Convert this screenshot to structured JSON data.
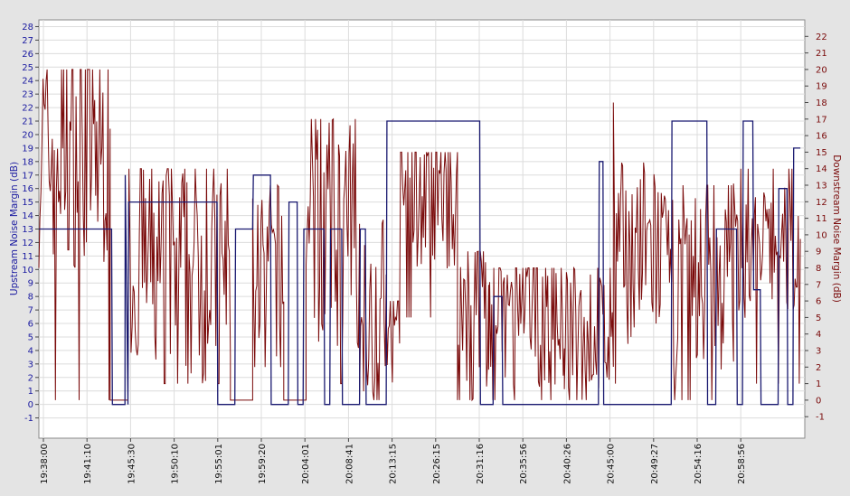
{
  "chart_data": {
    "type": "line",
    "title": "",
    "xlabel": "",
    "colors": {
      "upstream": "#191970",
      "downstream": "#7a0a0a",
      "left_axis_text": "#1a1aa0",
      "right_axis_text": "#7a0a0a",
      "grid": "#dcdcdc",
      "plot_bg": "#ffffff"
    },
    "left_axis": {
      "label": "Upstream Noise Margin (dB)",
      "ylim": [
        -2.5,
        28.5
      ],
      "ticks": [
        "-1",
        "0",
        "1",
        "2",
        "3",
        "4",
        "5",
        "6",
        "7",
        "8",
        "9",
        "10",
        "11",
        "12",
        "13",
        "14",
        "15",
        "16",
        "17",
        "18",
        "19",
        "20",
        "21",
        "22",
        "23",
        "24",
        "25",
        "26",
        "27",
        "28"
      ]
    },
    "right_axis": {
      "label": "Downstream Noise Margin (dB)",
      "ylim": [
        -2.3,
        23.0
      ],
      "ticks": [
        "-1",
        "0",
        "1",
        "2",
        "3",
        "4",
        "5",
        "6",
        "7",
        "8",
        "9",
        "10",
        "11",
        "12",
        "13",
        "14",
        "15",
        "16",
        "17",
        "18",
        "19",
        "20",
        "21",
        "22"
      ]
    },
    "x_axis": {
      "start": "19:37:00",
      "end": "21:03:00",
      "tick_labels": [
        "19:38:00",
        "19:41:10",
        "19:45:30",
        "19:50:10",
        "19:55:01",
        "19:59:20",
        "20:04:01",
        "20:08:41",
        "20:13:15",
        "20:26:15",
        "20:31:16",
        "20:35:56",
        "20:40:26",
        "20:45:00",
        "20:49:27",
        "20:54:16",
        "20:58:56"
      ]
    },
    "series": [
      {
        "name": "Upstream Noise Margin (dB)",
        "axis": "left",
        "step": true,
        "x": [
          "19:37:00",
          "19:45:10",
          "19:45:15",
          "19:46:40",
          "19:46:42",
          "19:47:00",
          "19:47:05",
          "19:57:00",
          "19:57:05",
          "19:59:00",
          "19:59:05",
          "20:01:00",
          "20:01:05",
          "20:03:00",
          "20:03:05",
          "20:05:00",
          "20:05:05",
          "20:06:00",
          "20:06:05",
          "20:06:40",
          "20:06:45",
          "20:09:00",
          "20:09:05",
          "20:09:40",
          "20:09:45",
          "20:11:00",
          "20:11:05",
          "20:13:00",
          "20:13:05",
          "20:13:40",
          "20:13:45",
          "20:16:00",
          "20:16:05",
          "20:26:30",
          "20:26:35",
          "20:28:00",
          "20:28:05",
          "20:29:00",
          "20:29:05",
          "20:39:50",
          "20:39:55",
          "20:40:20",
          "20:40:25",
          "20:48:00",
          "20:48:05",
          "20:52:00",
          "20:52:05",
          "20:53:00",
          "20:53:05",
          "20:55:20",
          "20:55:25",
          "20:56:00",
          "20:56:05",
          "20:57:10",
          "20:57:15",
          "20:58:00",
          "20:58:05",
          "21:00:00",
          "21:00:05",
          "21:01:00",
          "21:01:05",
          "21:01:40",
          "21:01:45",
          "21:02:30"
        ],
        "y": [
          13,
          13,
          0,
          0,
          17,
          0,
          15,
          15,
          0,
          0,
          13,
          13,
          17,
          17,
          0,
          0,
          15,
          15,
          0,
          0,
          13,
          13,
          0,
          0,
          13,
          13,
          0,
          0,
          13,
          13,
          0,
          0,
          21,
          21,
          0,
          0,
          8,
          8,
          0,
          0,
          18,
          18,
          0,
          0,
          21,
          21,
          0,
          0,
          13,
          13,
          0,
          0,
          21,
          21,
          8.5,
          8.5,
          0,
          0,
          16,
          16,
          0,
          0,
          19,
          19
        ]
      },
      {
        "name": "Downstream Noise Margin (dB)",
        "axis": "right",
        "x_range": [
          "19:37:00",
          "21:02:30"
        ],
        "segments": [
          {
            "start": "19:37:00",
            "end": "19:45:00",
            "base": 15,
            "amp": 5,
            "min": 0,
            "max": 20
          },
          {
            "start": "19:45:00",
            "end": "19:47:00",
            "base": 0,
            "amp": 0,
            "min": 0,
            "max": 0
          },
          {
            "start": "19:47:00",
            "end": "19:58:30",
            "base": 8,
            "amp": 5,
            "min": 1,
            "max": 14
          },
          {
            "start": "19:58:30",
            "end": "20:01:00",
            "base": 0,
            "amp": 0,
            "min": 0,
            "max": 0
          },
          {
            "start": "20:01:00",
            "end": "20:04:30",
            "base": 8,
            "amp": 4,
            "min": 2,
            "max": 13
          },
          {
            "start": "20:04:30",
            "end": "20:07:00",
            "base": 0,
            "amp": 0,
            "min": 0,
            "max": 0
          },
          {
            "start": "20:07:00",
            "end": "20:13:00",
            "base": 10,
            "amp": 5,
            "min": 1,
            "max": 17
          },
          {
            "start": "20:13:00",
            "end": "20:16:00",
            "base": 6,
            "amp": 4,
            "min": 0,
            "max": 11
          },
          {
            "start": "20:16:00",
            "end": "20:17:30",
            "base": 3,
            "amp": 2,
            "min": 0,
            "max": 6
          },
          {
            "start": "20:17:30",
            "end": "20:24:00",
            "base": 12,
            "amp": 3,
            "min": 5,
            "max": 15
          },
          {
            "start": "20:24:00",
            "end": "20:27:30",
            "base": 5,
            "amp": 4,
            "min": 0,
            "max": 9
          },
          {
            "start": "20:27:30",
            "end": "20:36:00",
            "base": 5,
            "amp": 3,
            "min": 0,
            "max": 8
          },
          {
            "start": "20:36:00",
            "end": "20:41:30",
            "base": 4,
            "amp": 3,
            "min": 0,
            "max": 8
          },
          {
            "start": "20:41:30",
            "end": "20:47:00",
            "base": 9,
            "amp": 4,
            "min": 1,
            "max": 18
          },
          {
            "start": "20:47:00",
            "end": "20:55:00",
            "base": 7,
            "amp": 4,
            "min": 0,
            "max": 13
          },
          {
            "start": "20:55:00",
            "end": "21:02:30",
            "base": 9,
            "amp": 3,
            "min": 1,
            "max": 14
          }
        ]
      }
    ],
    "grid": true,
    "legend": "none"
  }
}
